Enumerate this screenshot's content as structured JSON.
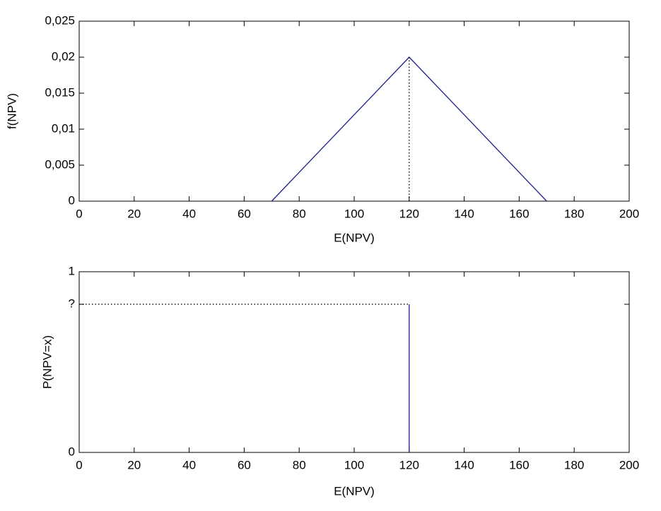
{
  "chart_data": [
    {
      "type": "line",
      "xlabel": "E(NPV)",
      "ylabel": "f(NPV)",
      "xlim": [
        0,
        200
      ],
      "ylim": [
        0,
        0.025
      ],
      "xticks": [
        0,
        20,
        40,
        60,
        80,
        100,
        120,
        140,
        160,
        180,
        200
      ],
      "yticks": [
        0,
        {
          "value": 0.005,
          "label": "0,005"
        },
        {
          "value": 0.01,
          "label": "0,01"
        },
        {
          "value": 0.015,
          "label": "0,015"
        },
        {
          "value": 0.02,
          "label": "0,02"
        },
        {
          "value": 0.025,
          "label": "0,025"
        }
      ],
      "series": [
        {
          "color": "#1f1f8f",
          "x": [
            70,
            120,
            170
          ],
          "values": [
            0,
            0.02,
            0
          ]
        },
        {
          "color": "#000000",
          "dash": true,
          "x": [
            120,
            120
          ],
          "values": [
            0,
            0.02
          ]
        }
      ]
    },
    {
      "type": "line",
      "xlabel": "E(NPV)",
      "ylabel": "P(NPV=x)",
      "xlim": [
        0,
        200
      ],
      "ylim": [
        0,
        1
      ],
      "xticks": [
        0,
        20,
        40,
        60,
        80,
        100,
        120,
        140,
        160,
        180,
        200
      ],
      "yticks": [
        0,
        {
          "value": 0.82,
          "label": "?"
        },
        1
      ],
      "series": [
        {
          "color": "#1f1f8f",
          "x": [
            120,
            120
          ],
          "values": [
            0,
            0.82
          ]
        },
        {
          "color": "#000000",
          "dash": true,
          "x": [
            0,
            120
          ],
          "values": [
            0.82,
            0.82
          ]
        }
      ]
    }
  ]
}
